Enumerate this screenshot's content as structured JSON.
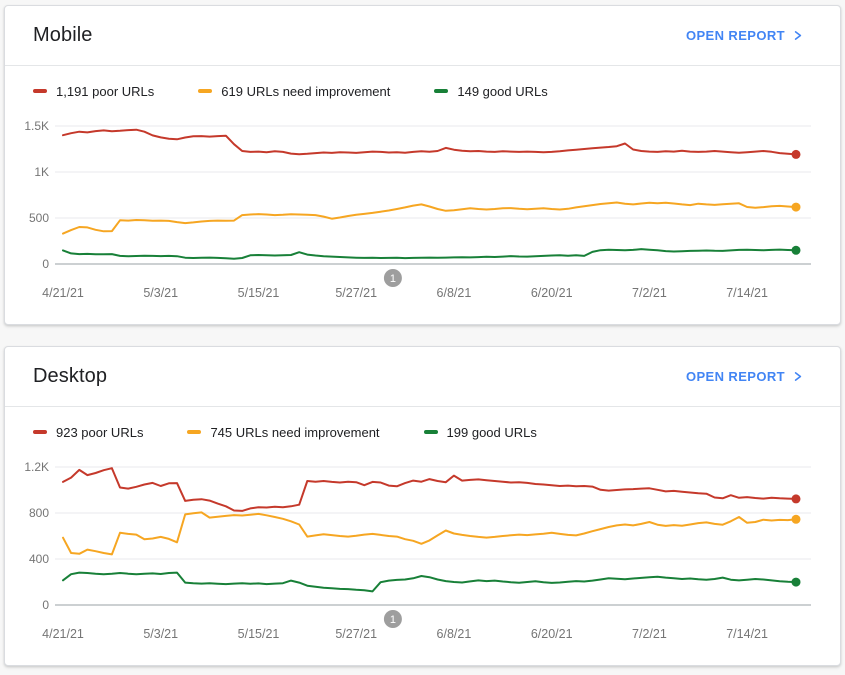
{
  "colors": {
    "link": "#4285f4",
    "poor": "#c5392b",
    "needs_improvement": "#f6a622",
    "good": "#188038",
    "axis_text": "#757575",
    "gridline": "#e9eaec",
    "zero_axis": "#9aa0a6",
    "annotation_gray": "#9e9e9e",
    "card_background": "#ffffff",
    "page_background": "#f7f7f7"
  },
  "panels": [
    {
      "title": "Mobile",
      "open_report_label": "OPEN REPORT",
      "legend": [
        {
          "key": "poor",
          "label": "1,191 poor URLs",
          "color": "#c5392b"
        },
        {
          "key": "needs-improvement",
          "label": "619 URLs need improvement",
          "color": "#f6a622"
        },
        {
          "key": "good",
          "label": "149 good URLs",
          "color": "#188038"
        }
      ],
      "chart_data": {
        "type": "line",
        "title": "Mobile Core Web Vitals URL trend",
        "x_tick_labels": [
          "4/21/21",
          "5/3/21",
          "5/15/21",
          "5/27/21",
          "6/8/21",
          "6/20/21",
          "7/2/21",
          "7/14/21"
        ],
        "x_tick_days": [
          0,
          12,
          24,
          36,
          48,
          60,
          72,
          84
        ],
        "days_total": 91,
        "start_date": "4/21/21",
        "ylim": [
          0,
          1500
        ],
        "y_ticks": [
          {
            "value": 0,
            "label": "0"
          },
          {
            "value": 500,
            "label": "500"
          },
          {
            "value": 1000,
            "label": "1K"
          },
          {
            "value": 1500,
            "label": "1.5K"
          }
        ],
        "grid": true,
        "legend_position": "top",
        "annotation": {
          "label": "1",
          "day": 40.5
        },
        "series": [
          {
            "name": "poor URLs",
            "key": "poor",
            "color": "#c5392b",
            "current": 1191,
            "values": [
              1400,
              1422,
              1438,
              1430,
              1445,
              1452,
              1442,
              1448,
              1455,
              1460,
              1438,
              1398,
              1376,
              1362,
              1355,
              1375,
              1388,
              1390,
              1385,
              1390,
              1395,
              1302,
              1228,
              1218,
              1222,
              1215,
              1225,
              1218,
              1200,
              1192,
              1198,
              1205,
              1212,
              1208,
              1215,
              1212,
              1208,
              1215,
              1222,
              1218,
              1212,
              1215,
              1210,
              1218,
              1225,
              1220,
              1228,
              1262,
              1242,
              1232,
              1225,
              1228,
              1222,
              1218,
              1225,
              1222,
              1218,
              1222,
              1218,
              1215,
              1218,
              1225,
              1235,
              1242,
              1250,
              1258,
              1265,
              1272,
              1280,
              1310,
              1245,
              1228,
              1222,
              1218,
              1225,
              1222,
              1230,
              1222,
              1218,
              1222,
              1228,
              1222,
              1215,
              1210,
              1215,
              1222,
              1228,
              1220,
              1205,
              1198,
              1191
            ]
          },
          {
            "name": "URLs need improvement",
            "key": "needs-improvement",
            "color": "#f6a622",
            "current": 619,
            "values": [
              330,
              368,
              402,
              398,
              372,
              355,
              358,
              475,
              472,
              478,
              475,
              470,
              472,
              468,
              455,
              445,
              452,
              462,
              468,
              472,
              470,
              472,
              532,
              538,
              542,
              538,
              532,
              535,
              540,
              538,
              535,
              532,
              515,
              492,
              505,
              522,
              535,
              545,
              555,
              568,
              582,
              598,
              615,
              635,
              648,
              625,
              598,
              578,
              585,
              595,
              605,
              598,
              592,
              598,
              605,
              608,
              600,
              595,
              600,
              605,
              598,
              592,
              600,
              615,
              628,
              640,
              652,
              660,
              668,
              655,
              648,
              658,
              665,
              660,
              665,
              658,
              648,
              640,
              655,
              648,
              642,
              650,
              655,
              660,
              620,
              612,
              618,
              628,
              632,
              625,
              619
            ]
          },
          {
            "name": "good URLs",
            "key": "good",
            "color": "#188038",
            "current": 149,
            "values": [
              148,
              115,
              108,
              110,
              107,
              105,
              108,
              88,
              85,
              87,
              90,
              88,
              86,
              88,
              85,
              68,
              65,
              68,
              70,
              66,
              62,
              58,
              65,
              95,
              98,
              95,
              92,
              95,
              98,
              128,
              102,
              92,
              85,
              80,
              76,
              72,
              68,
              66,
              68,
              65,
              66,
              68,
              64,
              66,
              68,
              70,
              68,
              70,
              72,
              74,
              72,
              75,
              78,
              76,
              80,
              86,
              82,
              80,
              84,
              88,
              92,
              95,
              90,
              96,
              88,
              132,
              150,
              155,
              152,
              150,
              153,
              162,
              155,
              150,
              140,
              136,
              139,
              142,
              145,
              147,
              144,
              142,
              148,
              153,
              155,
              152,
              150,
              153,
              156,
              152,
              149
            ]
          }
        ]
      }
    },
    {
      "title": "Desktop",
      "open_report_label": "OPEN REPORT",
      "legend": [
        {
          "key": "poor",
          "label": "923 poor URLs",
          "color": "#c5392b"
        },
        {
          "key": "needs-improvement",
          "label": "745 URLs need improvement",
          "color": "#f6a622"
        },
        {
          "key": "good",
          "label": "199 good URLs",
          "color": "#188038"
        }
      ],
      "chart_data": {
        "type": "line",
        "title": "Desktop Core Web Vitals URL trend",
        "x_tick_labels": [
          "4/21/21",
          "5/3/21",
          "5/15/21",
          "5/27/21",
          "6/8/21",
          "6/20/21",
          "7/2/21",
          "7/14/21"
        ],
        "x_tick_days": [
          0,
          12,
          24,
          36,
          48,
          60,
          72,
          84
        ],
        "days_total": 91,
        "start_date": "4/21/21",
        "ylim": [
          0,
          1200
        ],
        "y_ticks": [
          {
            "value": 0,
            "label": "0"
          },
          {
            "value": 400,
            "label": "400"
          },
          {
            "value": 800,
            "label": "800"
          },
          {
            "value": 1200,
            "label": "1.2K"
          }
        ],
        "grid": true,
        "legend_position": "top",
        "annotation": {
          "label": "1",
          "day": 40.5
        },
        "series": [
          {
            "name": "poor URLs",
            "key": "poor",
            "color": "#c5392b",
            "current": 923,
            "values": [
              1070,
              1108,
              1175,
              1130,
              1148,
              1172,
              1190,
              1022,
              1012,
              1028,
              1048,
              1062,
              1035,
              1058,
              1060,
              905,
              915,
              920,
              908,
              882,
              858,
              822,
              818,
              840,
              850,
              848,
              855,
              850,
              858,
              872,
              1078,
              1072,
              1078,
              1070,
              1065,
              1072,
              1068,
              1042,
              1070,
              1065,
              1038,
              1032,
              1060,
              1082,
              1072,
              1095,
              1078,
              1068,
              1125,
              1082,
              1088,
              1092,
              1085,
              1078,
              1072,
              1065,
              1068,
              1062,
              1052,
              1048,
              1042,
              1035,
              1038,
              1032,
              1035,
              1030,
              1002,
              995,
              1000,
              1005,
              1008,
              1012,
              1015,
              1002,
              988,
              992,
              985,
              978,
              972,
              968,
              935,
              928,
              955,
              932,
              938,
              930,
              925,
              932,
              928,
              925,
              923
            ]
          },
          {
            "name": "URLs need improvement",
            "key": "needs-improvement",
            "color": "#f6a622",
            "current": 745,
            "values": [
              585,
              452,
              445,
              482,
              468,
              452,
              440,
              628,
              618,
              612,
              572,
              578,
              592,
              575,
              545,
              788,
              798,
              805,
              760,
              768,
              775,
              782,
              778,
              785,
              792,
              780,
              765,
              750,
              728,
              700,
              595,
              605,
              615,
              608,
              600,
              595,
              602,
              612,
              618,
              610,
              600,
              595,
              572,
              558,
              532,
              562,
              605,
              648,
              622,
              610,
              600,
              592,
              586,
              592,
              600,
              606,
              612,
              608,
              614,
              620,
              628,
              618,
              610,
              605,
              622,
              642,
              660,
              678,
              692,
              700,
              692,
              705,
              722,
              698,
              688,
              695,
              690,
              700,
              712,
              718,
              705,
              698,
              728,
              765,
              715,
              722,
              742,
              735,
              740,
              738,
              745
            ]
          },
          {
            "name": "good URLs",
            "key": "good",
            "color": "#188038",
            "current": 199,
            "values": [
              215,
              268,
              282,
              278,
              272,
              268,
              272,
              278,
              272,
              268,
              272,
              275,
              270,
              278,
              282,
              195,
              190,
              186,
              190,
              185,
              182,
              186,
              190,
              185,
              188,
              182,
              186,
              190,
              212,
              195,
              168,
              158,
              150,
              145,
              140,
              138,
              132,
              128,
              118,
              198,
              212,
              218,
              222,
              232,
              252,
              242,
              222,
              208,
              200,
              196,
              205,
              214,
              208,
              212,
              204,
              198,
              194,
              200,
              206,
              198,
              192,
              196,
              202,
              208,
              204,
              212,
              222,
              232,
              228,
              224,
              230,
              236,
              242,
              246,
              238,
              232,
              226,
              230,
              224,
              220,
              226,
              238,
              220,
              214,
              220,
              226,
              222,
              214,
              206,
              202,
              199
            ]
          }
        ]
      }
    }
  ]
}
